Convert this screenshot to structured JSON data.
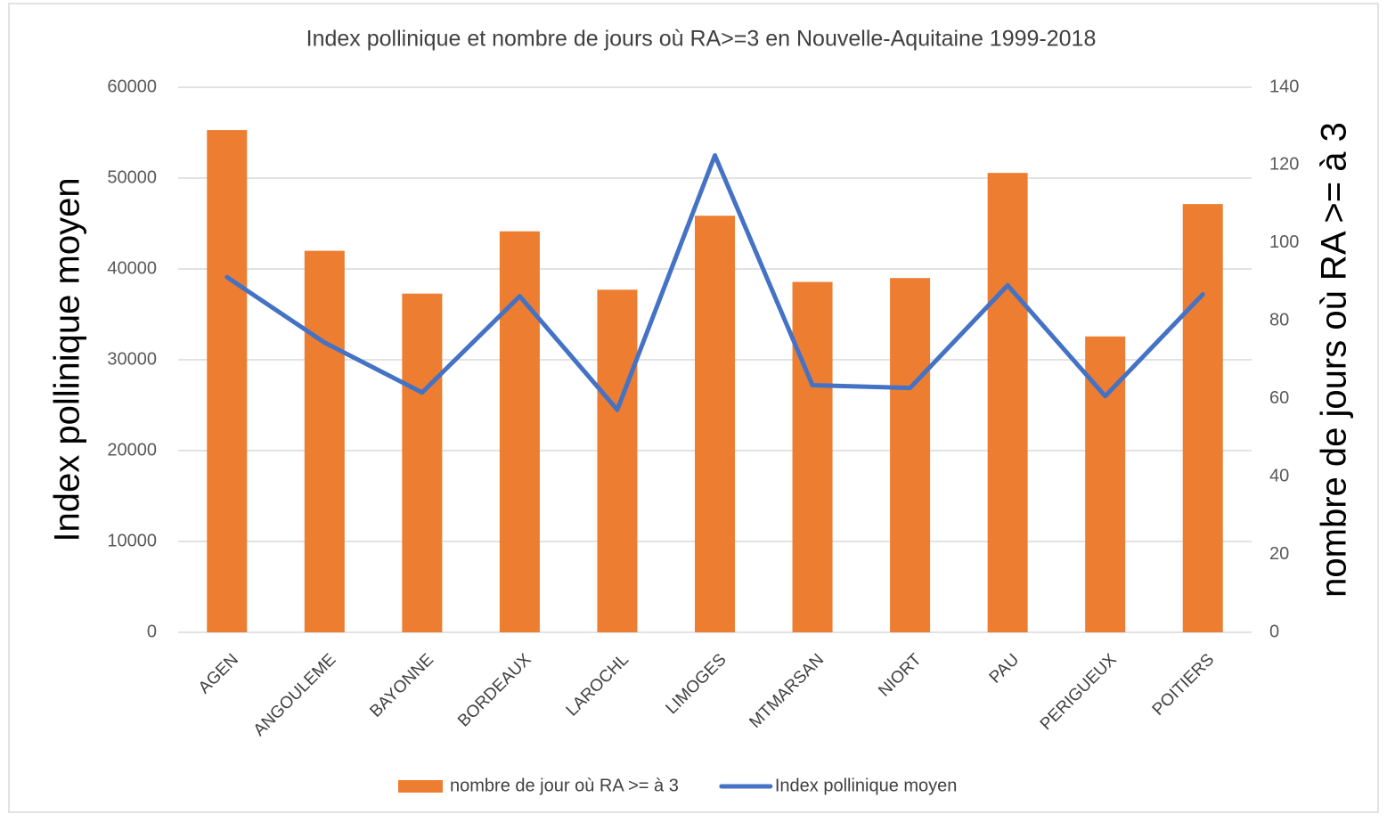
{
  "chart_data": {
    "type": "bar_line",
    "title": "Index pollinique et nombre de jours où RA>=3 en Nouvelle-Aquitaine 1999-2018",
    "y_label": "Index pollinique moyen",
    "y2_label": "nombre de jours où RA >= à 3",
    "categories": [
      "AGEN",
      "ANGOULEME",
      "BAYONNE",
      "BORDEAUX",
      "LAROCHL",
      "LIMOGES",
      "MTMARSAN",
      "NIORT",
      "PAU",
      "PERIGUEUX",
      "POITIERS"
    ],
    "series": [
      {
        "name": "nombre de jour où RA >= à 3",
        "type": "bar",
        "axis": "y2",
        "color": "#ed7d31",
        "values": [
          129,
          98,
          87,
          103,
          88,
          107,
          90,
          91,
          118,
          76,
          110
        ]
      },
      {
        "name": "Index pollinique moyen",
        "type": "line",
        "axis": "y",
        "color": "#4472c4",
        "values": [
          39100,
          31900,
          26400,
          37000,
          24500,
          52500,
          27200,
          26900,
          38200,
          26000,
          37200
        ]
      }
    ],
    "ylim": [
      0,
      60000
    ],
    "yticks": [
      0,
      10000,
      20000,
      30000,
      40000,
      50000,
      60000
    ],
    "y2lim": [
      0,
      140
    ],
    "y2ticks": [
      0,
      20,
      40,
      60,
      80,
      100,
      120,
      140
    ],
    "grid": true,
    "legend": "bottom"
  }
}
